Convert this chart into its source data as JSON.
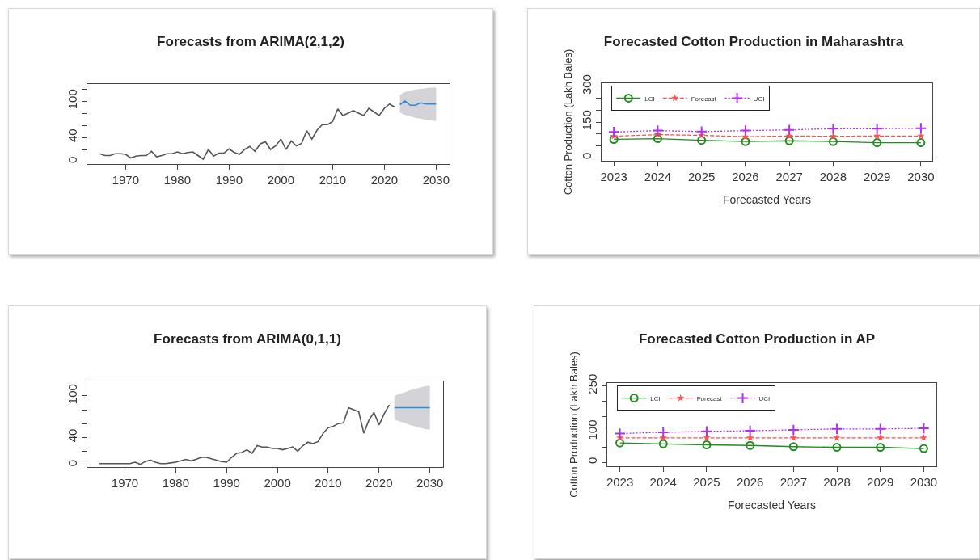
{
  "chart_data": [
    {
      "type": "line",
      "title": "Forecasts from ARIMA(2,1,2)",
      "xlim": [
        1962.6,
        2032.6
      ],
      "ylim": [
        -4,
        128
      ],
      "xticks": [
        1970,
        1980,
        1990,
        2000,
        2010,
        2020,
        2030
      ],
      "yticks": [
        0,
        {
          "value": 20,
          "label": null
        },
        40,
        {
          "value": 60,
          "label": null
        },
        {
          "value": 80,
          "label": null
        },
        100,
        {
          "value": 120,
          "label": null
        }
      ],
      "grid": false,
      "legend": false,
      "series": [
        {
          "color": "#555555",
          "x": [
            1965,
            1966,
            1967,
            1968,
            1969,
            1970,
            1971,
            1972,
            1973,
            1974,
            1975,
            1976,
            1977,
            1978,
            1979,
            1980,
            1981,
            1982,
            1983,
            1984,
            1985,
            1986,
            1987,
            1988,
            1989,
            1990,
            1991,
            1992,
            1993,
            1994,
            1995,
            1996,
            1997,
            1998,
            1999,
            2000,
            2001,
            2002,
            2003,
            2004,
            2005,
            2006,
            2007,
            2008,
            2009,
            2010,
            2011,
            2012,
            2013,
            2014,
            2015,
            2016,
            2017,
            2018,
            2019,
            2020,
            2021,
            2022
          ],
          "values": [
            13,
            10,
            10,
            13,
            13,
            12,
            6,
            9,
            10,
            10,
            17,
            8,
            10,
            13,
            13,
            16,
            13,
            15,
            16,
            10,
            4,
            20,
            9,
            14,
            14,
            21,
            15,
            12,
            20,
            25,
            17,
            29,
            33,
            20,
            26,
            37,
            20,
            34,
            26,
            30,
            51,
            37,
            52,
            61,
            61,
            66,
            87,
            76,
            80,
            84,
            80,
            76,
            88,
            82,
            76,
            88,
            95,
            90
          ]
        },
        {
          "color": "#2e8bdd",
          "x": [
            2023,
            2024,
            2025,
            2026,
            2027,
            2028,
            2029,
            2030
          ],
          "values": [
            94,
            100,
            93,
            93,
            97,
            95,
            95,
            95
          ],
          "lower": [
            81,
            77,
            75,
            72,
            71,
            69,
            68,
            67
          ],
          "upper": [
            110,
            115,
            117,
            119,
            120,
            121,
            122,
            122
          ]
        }
      ]
    },
    {
      "type": "line",
      "title": "Forecasted Cotton Production in Maharashtra",
      "xlabel": "Forecasted Years",
      "ylabel": "Cotton Production (Lakh Bales)",
      "xlim": [
        2022.72,
        2030.26
      ],
      "ylim": [
        -13,
        313
      ],
      "xticks": [
        2023,
        2024,
        2025,
        2026,
        2027,
        2028,
        2029,
        2030
      ],
      "yticks": [
        0,
        {
          "value": 50,
          "label": null
        },
        {
          "value": 100,
          "label": null
        },
        150,
        {
          "value": 200,
          "label": null
        },
        {
          "value": 250,
          "label": null
        },
        300
      ],
      "grid": false,
      "legend": "top left",
      "x": [
        2023,
        2024,
        2025,
        2026,
        2027,
        2028,
        2029,
        2030
      ],
      "series": [
        {
          "name": "LCI",
          "color": "#228b22",
          "marker": "circle",
          "line_style": "solid",
          "values": [
            77,
            80,
            73,
            68,
            71,
            68,
            63,
            63
          ]
        },
        {
          "name": "Forecast",
          "color": "#ff5050",
          "marker": "star",
          "line_style": "dashed",
          "values": [
            90,
            97,
            94,
            88,
            91,
            90,
            91,
            91
          ]
        },
        {
          "name": "UCI",
          "color": "#b030f0",
          "marker": "cross",
          "line_style": "dotted",
          "values": [
            108,
            114,
            110,
            114,
            117,
            122,
            122,
            124
          ]
        }
      ]
    },
    {
      "type": "line",
      "title": "Forecasts from ARIMA(0,1,1)",
      "xlim": [
        1962.6,
        2032.6
      ],
      "ylim": [
        -3,
        121
      ],
      "xticks": [
        1970,
        1980,
        1990,
        2000,
        2010,
        2020,
        2030
      ],
      "yticks": [
        0,
        {
          "value": 20,
          "label": null
        },
        40,
        {
          "value": 60,
          "label": null
        },
        {
          "value": 80,
          "label": null
        },
        100
      ],
      "grid": false,
      "legend": false,
      "series": [
        {
          "color": "#555555",
          "x": [
            1965,
            1966,
            1967,
            1968,
            1969,
            1970,
            1971,
            1972,
            1973,
            1974,
            1975,
            1976,
            1977,
            1978,
            1979,
            1980,
            1981,
            1982,
            1983,
            1984,
            1985,
            1986,
            1987,
            1988,
            1989,
            1990,
            1991,
            1992,
            1993,
            1994,
            1995,
            1996,
            1997,
            1998,
            1999,
            2000,
            2001,
            2002,
            2003,
            2004,
            2005,
            2006,
            2007,
            2008,
            2009,
            2010,
            2011,
            2012,
            2013,
            2014,
            2015,
            2016,
            2017,
            2018,
            2019,
            2020,
            2021,
            2022
          ],
          "values": [
            2,
            2,
            2,
            2,
            2,
            2,
            2,
            4,
            1,
            5,
            7,
            4,
            2,
            2,
            3,
            4,
            6,
            8,
            6,
            8,
            11,
            11,
            9,
            7,
            5,
            4,
            11,
            17,
            18,
            22,
            17,
            28,
            26,
            26,
            24,
            24,
            22,
            24,
            26,
            20,
            28,
            33,
            31,
            34,
            46,
            54,
            56,
            60,
            61,
            83,
            80,
            77,
            46,
            65,
            76,
            58,
            74,
            87
          ]
        },
        {
          "color": "#2e8bdd",
          "x": [
            2023,
            2024,
            2025,
            2026,
            2027,
            2028,
            2029,
            2030
          ],
          "values": [
            83,
            83,
            83,
            83,
            83,
            83,
            83,
            83
          ],
          "lower": [
            66,
            63,
            61,
            58,
            56,
            54,
            52,
            51
          ],
          "upper": [
            100,
            103,
            105,
            108,
            110,
            112,
            114,
            115
          ]
        }
      ]
    },
    {
      "type": "line",
      "title": "Forecasted Cotton Production in AP",
      "xlabel": "Forecasted Years",
      "ylabel": "Cotton Production (Lakh Bales)",
      "xlim": [
        2022.71,
        2030.29
      ],
      "ylim": [
        -13,
        259
      ],
      "xticks": [
        2023,
        2024,
        2025,
        2026,
        2027,
        2028,
        2029,
        2030
      ],
      "yticks": [
        0,
        {
          "value": 50,
          "label": null
        },
        100,
        {
          "value": 150,
          "label": null
        },
        {
          "value": 200,
          "label": null
        },
        250
      ],
      "grid": false,
      "legend": "top left",
      "x": [
        2023,
        2024,
        2025,
        2026,
        2027,
        2028,
        2029,
        2030
      ],
      "series": [
        {
          "name": "LCI",
          "color": "#228b22",
          "marker": "circle",
          "line_style": "solid",
          "values": [
            63,
            60,
            57,
            55,
            51,
            49,
            49,
            45
          ]
        },
        {
          "name": "Forecast",
          "color": "#ff5050",
          "marker": "star",
          "line_style": "dashed",
          "values": [
            80,
            80,
            80,
            80,
            80,
            80,
            80,
            80
          ]
        },
        {
          "name": "UCI",
          "color": "#b030f0",
          "marker": "cross",
          "line_style": "dotted",
          "values": [
            94,
            98,
            101,
            103,
            106,
            109,
            109,
            111
          ]
        }
      ]
    }
  ]
}
